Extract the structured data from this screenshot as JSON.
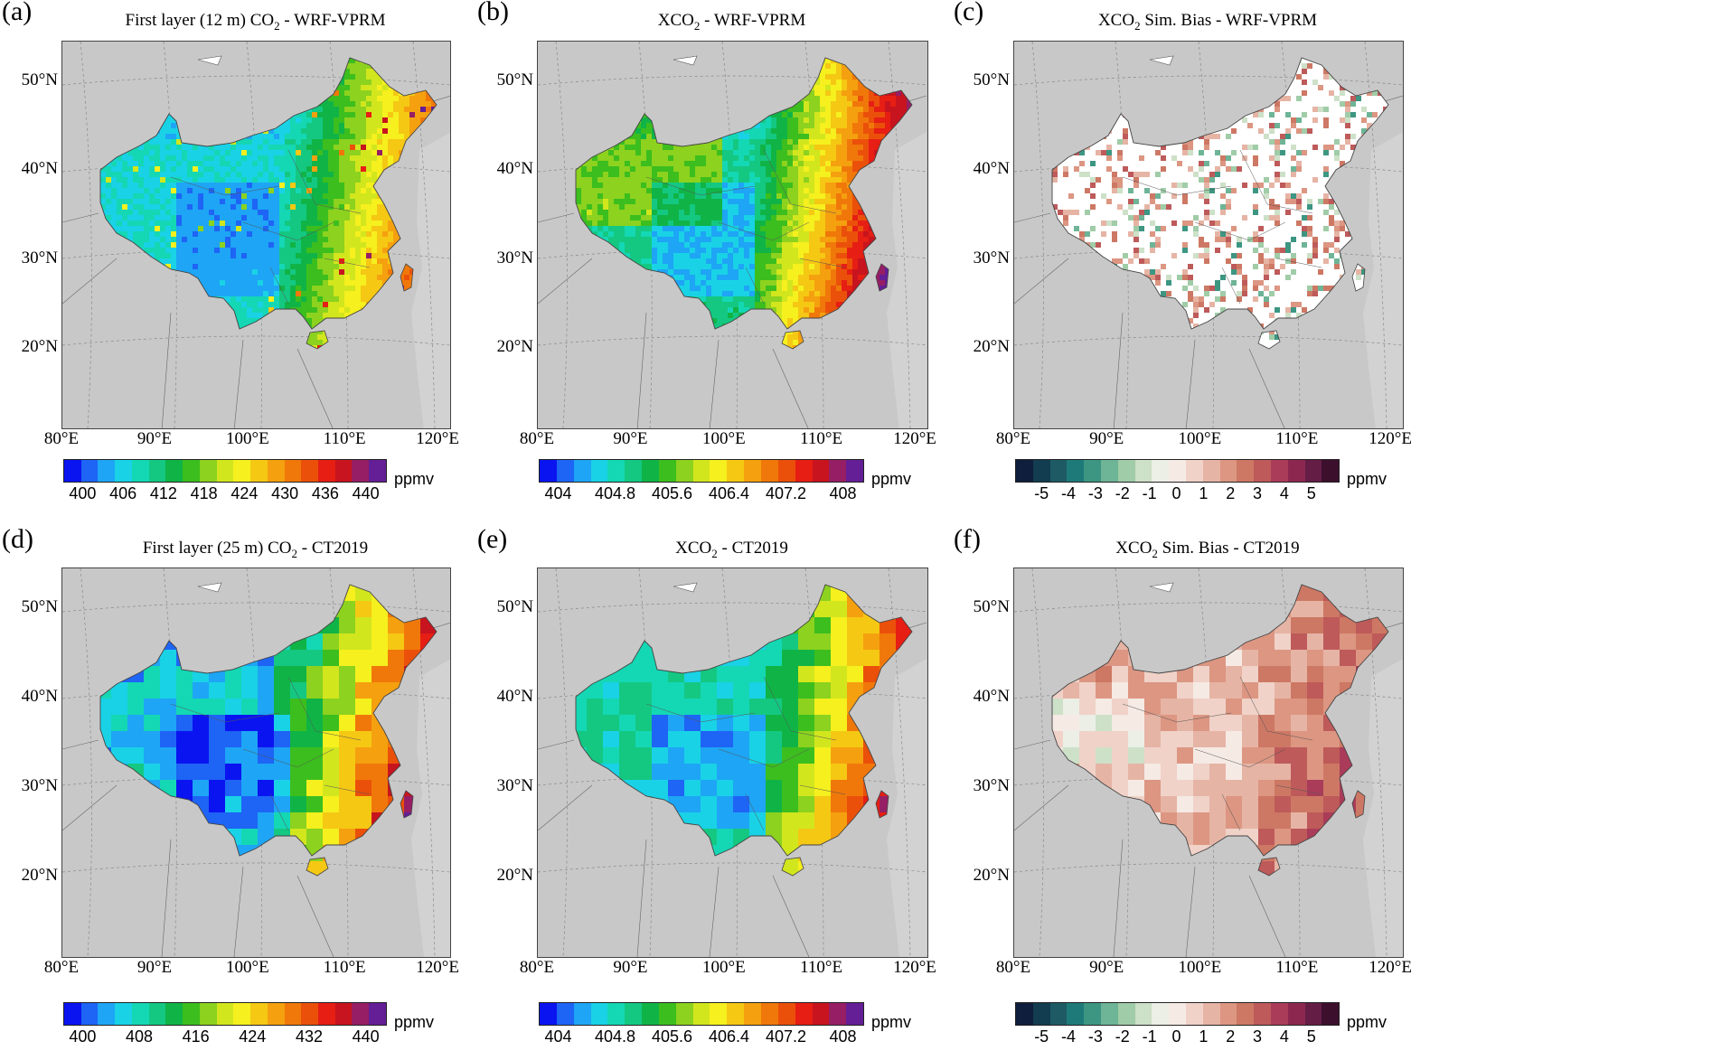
{
  "panels": [
    {
      "id": "a",
      "label": "(a)",
      "title_pre": "First layer (12 m) CO",
      "title_sub": "2",
      "title_post": " - WRF-VPRM",
      "lat_labels": [
        "50°N",
        "40°N",
        "30°N",
        "20°N"
      ],
      "lon_labels": [
        "80°E",
        "90°E",
        "100°E",
        "110°E",
        "120°E"
      ],
      "scale": "conc",
      "style": "fine-hot",
      "colorbar": {
        "ticks": [
          "400",
          "406",
          "412",
          "418",
          "424",
          "430",
          "436",
          "440"
        ],
        "unit": "ppmv"
      }
    },
    {
      "id": "b",
      "label": "(b)",
      "title_pre": "XCO",
      "title_sub": "2",
      "title_post": " - WRF-VPRM",
      "lat_labels": [
        "50°N",
        "40°N",
        "30°N",
        "20°N"
      ],
      "lon_labels": [
        "80°E",
        "90°E",
        "100°E",
        "110°E",
        "120°E"
      ],
      "scale": "conc",
      "style": "fine-xco2",
      "colorbar": {
        "ticks": [
          "404",
          "404.8",
          "405.6",
          "406.4",
          "407.2",
          "408"
        ],
        "unit": "ppmv"
      }
    },
    {
      "id": "c",
      "label": "(c)",
      "title_pre": "XCO",
      "title_sub": "2",
      "title_post": " Sim. Bias - WRF-VPRM",
      "lat_labels": [
        "50°N",
        "40°N",
        "30°N",
        "20°N"
      ],
      "lon_labels": [
        "80°E",
        "90°E",
        "100°E",
        "110°E",
        "120°E"
      ],
      "scale": "div",
      "style": "fine-bias",
      "colorbar": {
        "ticks": [
          "-5",
          "-4",
          "-3",
          "-2",
          "-1",
          "0",
          "1",
          "2",
          "3",
          "4",
          "5"
        ],
        "unit": "ppmv"
      }
    },
    {
      "id": "d",
      "label": "(d)",
      "title_pre": "First layer (25 m) CO",
      "title_sub": "2",
      "title_post": " - CT2019",
      "lat_labels": [
        "50°N",
        "40°N",
        "30°N",
        "20°N"
      ],
      "lon_labels": [
        "80°E",
        "90°E",
        "100°E",
        "110°E",
        "120°E"
      ],
      "scale": "conc",
      "style": "coarse-hot",
      "colorbar": {
        "ticks": [
          "400",
          "408",
          "416",
          "424",
          "432",
          "440"
        ],
        "unit": "ppmv"
      }
    },
    {
      "id": "e",
      "label": "(e)",
      "title_pre": "XCO",
      "title_sub": "2",
      "title_post": " - CT2019",
      "lat_labels": [
        "50°N",
        "40°N",
        "30°N",
        "20°N"
      ],
      "lon_labels": [
        "80°E",
        "90°E",
        "100°E",
        "110°E",
        "120°E"
      ],
      "scale": "conc",
      "style": "coarse-xco2",
      "colorbar": {
        "ticks": [
          "404",
          "404.8",
          "405.6",
          "406.4",
          "407.2",
          "408"
        ],
        "unit": "ppmv"
      }
    },
    {
      "id": "f",
      "label": "(f)",
      "title_pre": "XCO",
      "title_sub": "2",
      "title_post": " Sim. Bias - CT2019",
      "lat_labels": [
        "50°N",
        "40°N",
        "30°N",
        "20°N"
      ],
      "lon_labels": [
        "80°E",
        "90°E",
        "100°E",
        "110°E",
        "120°E"
      ],
      "scale": "div",
      "style": "coarse-bias",
      "colorbar": {
        "ticks": [
          "-5",
          "-4",
          "-3",
          "-2",
          "-1",
          "0",
          "1",
          "2",
          "3",
          "4",
          "5"
        ],
        "unit": "ppmv"
      }
    }
  ],
  "colors": {
    "land": "#c8c8c8",
    "water": "#ffffff",
    "conc_scale": [
      "#0a14f0",
      "#1e64f5",
      "#1ea5f5",
      "#19d2e6",
      "#14d7b4",
      "#14c882",
      "#10b446",
      "#3cbe1e",
      "#8cd21e",
      "#d2e61e",
      "#f5f01e",
      "#f5c814",
      "#f5a00f",
      "#f0780a",
      "#eb500a",
      "#e61e14",
      "#c8141e",
      "#961e64",
      "#641e96"
    ],
    "div_scale": [
      "#0f1e3c",
      "#123c50",
      "#1e5a64",
      "#1e7a78",
      "#3c9682",
      "#6eb496",
      "#a0cca8",
      "#cde0c8",
      "#ebefe6",
      "#f5eae4",
      "#f0d2c8",
      "#e6b4a5",
      "#dc9682",
      "#cd7864",
      "#be5a5a",
      "#aa3c5a",
      "#8c2850",
      "#641e46",
      "#3c0f2d"
    ]
  }
}
